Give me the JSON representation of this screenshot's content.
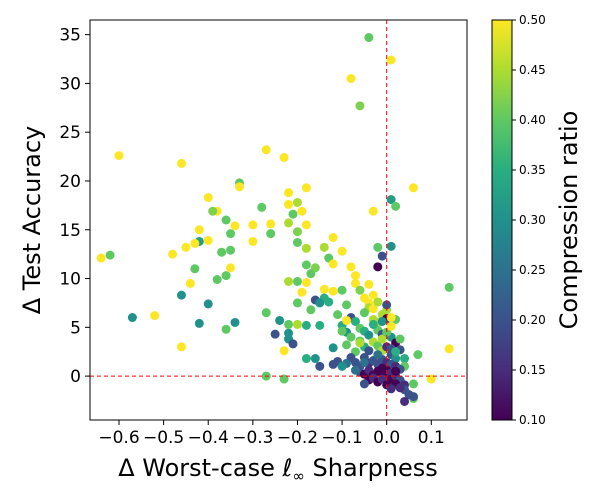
{
  "chart_data": {
    "type": "scatter",
    "title": "",
    "xlabel_pre": "Δ Worst-case ",
    "xlabel_ell": "ℓ",
    "xlabel_sub": "∞",
    "xlabel_post": " Sharpness",
    "ylabel": "Δ Test Accuracy",
    "xlim": [
      -0.665,
      0.18
    ],
    "ylim": [
      -4.5,
      36.5
    ],
    "xticks": [
      -0.6,
      -0.5,
      -0.4,
      -0.3,
      -0.2,
      -0.1,
      0.0,
      0.1
    ],
    "xtick_labels": [
      "−0.6",
      "−0.5",
      "−0.4",
      "−0.3",
      "−0.2",
      "−0.1",
      "0.0",
      "0.1"
    ],
    "yticks": [
      0,
      5,
      10,
      15,
      20,
      25,
      30,
      35
    ],
    "ytick_labels": [
      "0",
      "5",
      "10",
      "15",
      "20",
      "25",
      "30",
      "35"
    ],
    "reference_lines": {
      "x": 0,
      "y": 0,
      "color": "#ff0000",
      "style": "dashed"
    },
    "colorbar": {
      "label": "Compression ratio",
      "range": [
        0.1,
        0.5
      ],
      "ticks": [
        0.1,
        0.15,
        0.2,
        0.25,
        0.3,
        0.35,
        0.4,
        0.45,
        0.5
      ],
      "tick_labels": [
        "0.10",
        "0.15",
        "0.20",
        "0.25",
        "0.30",
        "0.35",
        "0.40",
        "0.45",
        "0.50"
      ],
      "colormap": "viridis"
    },
    "points": [
      [
        -0.04,
        34.7,
        0.4
      ],
      [
        0.01,
        32.4,
        0.5
      ],
      [
        -0.08,
        30.5,
        0.5
      ],
      [
        -0.06,
        27.7,
        0.42
      ],
      [
        -0.6,
        22.6,
        0.5
      ],
      [
        -0.46,
        21.8,
        0.5
      ],
      [
        -0.27,
        23.2,
        0.5
      ],
      [
        -0.23,
        22.4,
        0.5
      ],
      [
        -0.33,
        19.8,
        0.4
      ],
      [
        -0.33,
        19.4,
        0.5
      ],
      [
        -0.18,
        19.3,
        0.5
      ],
      [
        -0.22,
        18.8,
        0.5
      ],
      [
        -0.4,
        18.3,
        0.5
      ],
      [
        -0.22,
        17.6,
        0.5
      ],
      [
        -0.2,
        17.8,
        0.45
      ],
      [
        0.01,
        18.1,
        0.32
      ],
      [
        0.02,
        17.4,
        0.4
      ],
      [
        -0.03,
        16.9,
        0.5
      ],
      [
        0.06,
        19.3,
        0.5
      ],
      [
        -0.38,
        16.9,
        0.5
      ],
      [
        -0.39,
        16.9,
        0.42
      ],
      [
        -0.21,
        16.6,
        0.4
      ],
      [
        -0.19,
        16.9,
        0.5
      ],
      [
        -0.28,
        17.3,
        0.4
      ],
      [
        -0.36,
        16.0,
        0.4
      ],
      [
        -0.3,
        15.5,
        0.5
      ],
      [
        -0.26,
        15.6,
        0.5
      ],
      [
        -0.22,
        15.7,
        0.45
      ],
      [
        -0.18,
        15.5,
        0.5
      ],
      [
        -0.34,
        15.4,
        0.5
      ],
      [
        -0.42,
        15.0,
        0.5
      ],
      [
        -0.2,
        14.8,
        0.42
      ],
      [
        -0.26,
        14.6,
        0.4
      ],
      [
        -0.35,
        14.6,
        0.4
      ],
      [
        -0.3,
        13.8,
        0.5
      ],
      [
        -0.2,
        13.7,
        0.4
      ],
      [
        -0.12,
        14.2,
        0.5
      ],
      [
        -0.42,
        13.8,
        0.32
      ],
      [
        -0.4,
        13.9,
        0.5
      ],
      [
        -0.45,
        13.2,
        0.5
      ],
      [
        -0.43,
        13.6,
        0.5
      ],
      [
        -0.18,
        13.1,
        0.45
      ],
      [
        -0.14,
        13.2,
        0.45
      ],
      [
        -0.35,
        12.9,
        0.4
      ],
      [
        -0.37,
        12.7,
        0.4
      ],
      [
        -0.48,
        12.5,
        0.5
      ],
      [
        -0.64,
        12.1,
        0.5
      ],
      [
        -0.62,
        12.4,
        0.4
      ],
      [
        -0.1,
        12.8,
        0.5
      ],
      [
        -0.13,
        12.1,
        0.4
      ],
      [
        -0.18,
        11.4,
        0.4
      ],
      [
        -0.16,
        11.1,
        0.42
      ],
      [
        -0.12,
        11.5,
        0.5
      ],
      [
        -0.35,
        11.1,
        0.5
      ],
      [
        -0.08,
        11.2,
        0.5
      ],
      [
        -0.02,
        11.2,
        0.1
      ],
      [
        -0.2,
        9.7,
        0.4
      ],
      [
        -0.22,
        9.7,
        0.45
      ],
      [
        -0.17,
        10.5,
        0.4
      ],
      [
        0.01,
        13.3,
        0.3
      ],
      [
        -0.02,
        13.2,
        0.4
      ],
      [
        -0.01,
        12.3,
        0.2
      ],
      [
        -0.43,
        11.0,
        0.4
      ],
      [
        -0.36,
        10.3,
        0.4
      ],
      [
        -0.38,
        9.9,
        0.4
      ],
      [
        -0.44,
        9.5,
        0.5
      ],
      [
        -0.18,
        9.6,
        0.5
      ],
      [
        -0.14,
        8.9,
        0.5
      ],
      [
        -0.12,
        8.7,
        0.5
      ],
      [
        -0.1,
        8.8,
        0.4
      ],
      [
        -0.19,
        8.6,
        0.5
      ],
      [
        -0.14,
        8.0,
        0.35
      ],
      [
        -0.07,
        10.3,
        0.5
      ],
      [
        -0.07,
        9.5,
        0.5
      ],
      [
        -0.06,
        8.8,
        0.42
      ],
      [
        -0.05,
        8.0,
        0.5
      ],
      [
        -0.04,
        7.5,
        0.5
      ],
      [
        -0.03,
        8.3,
        0.5
      ],
      [
        -0.04,
        7.0,
        0.45
      ],
      [
        -0.05,
        6.5,
        0.4
      ],
      [
        -0.09,
        7.3,
        0.4
      ],
      [
        -0.2,
        7.5,
        0.4
      ],
      [
        -0.16,
        7.8,
        0.2
      ],
      [
        -0.15,
        7.5,
        0.3
      ],
      [
        -0.13,
        7.6,
        0.35
      ],
      [
        -0.17,
        6.8,
        0.4
      ],
      [
        -0.46,
        8.3,
        0.3
      ],
      [
        -0.4,
        7.4,
        0.3
      ],
      [
        -0.57,
        6.0,
        0.3
      ],
      [
        -0.27,
        6.5,
        0.4
      ],
      [
        -0.24,
        5.7,
        0.3
      ],
      [
        -0.36,
        4.8,
        0.4
      ],
      [
        -0.34,
        5.5,
        0.3
      ],
      [
        -0.42,
        5.4,
        0.3
      ],
      [
        -0.52,
        6.2,
        0.5
      ],
      [
        -0.25,
        4.3,
        0.2
      ],
      [
        -0.22,
        4.4,
        0.3
      ],
      [
        -0.22,
        5.3,
        0.4
      ],
      [
        -0.2,
        5.3,
        0.45
      ],
      [
        -0.18,
        5.2,
        0.35
      ],
      [
        -0.15,
        5.2,
        0.35
      ],
      [
        -0.22,
        3.8,
        0.3
      ],
      [
        -0.21,
        3.3,
        0.2
      ],
      [
        -0.23,
        2.6,
        0.5
      ],
      [
        -0.46,
        3.0,
        0.5
      ],
      [
        -0.27,
        0.0,
        0.4
      ],
      [
        -0.23,
        -0.3,
        0.4
      ],
      [
        -0.18,
        1.8,
        0.35
      ],
      [
        -0.16,
        1.8,
        0.3
      ],
      [
        -0.15,
        1.0,
        0.2
      ],
      [
        -0.12,
        2.9,
        0.3
      ],
      [
        -0.11,
        1.5,
        0.2
      ],
      [
        -0.1,
        5.2,
        0.35
      ],
      [
        -0.09,
        4.5,
        0.3
      ],
      [
        -0.08,
        6.0,
        0.2
      ],
      [
        -0.07,
        5.6,
        0.35
      ],
      [
        -0.06,
        4.9,
        0.4
      ],
      [
        -0.05,
        4.6,
        0.35
      ],
      [
        -0.04,
        4.2,
        0.3
      ],
      [
        -0.03,
        5.8,
        0.45
      ],
      [
        -0.02,
        5.5,
        0.45
      ],
      [
        -0.01,
        6.3,
        0.45
      ],
      [
        0.0,
        6.8,
        0.45
      ],
      [
        0.0,
        7.3,
        0.2
      ],
      [
        0.0,
        5.9,
        0.1
      ],
      [
        0.01,
        5.6,
        0.2
      ],
      [
        0.02,
        5.8,
        0.4
      ],
      [
        -0.02,
        4.7,
        0.4
      ],
      [
        -0.01,
        4.3,
        0.2
      ],
      [
        0.01,
        4.0,
        0.3
      ],
      [
        0.02,
        3.4,
        0.1
      ],
      [
        0.03,
        2.7,
        0.2
      ],
      [
        -0.09,
        3.2,
        0.4
      ],
      [
        -0.07,
        2.5,
        0.4
      ],
      [
        -0.06,
        3.6,
        0.4
      ],
      [
        -0.05,
        3.0,
        0.35
      ],
      [
        -0.04,
        2.6,
        0.2
      ],
      [
        -0.03,
        3.5,
        0.45
      ],
      [
        -0.02,
        3.1,
        0.4
      ],
      [
        -0.01,
        2.6,
        0.45
      ],
      [
        0.01,
        2.2,
        0.2
      ],
      [
        0.02,
        1.8,
        0.3
      ],
      [
        0.04,
        1.8,
        0.35
      ],
      [
        0.04,
        1.0,
        0.4
      ],
      [
        0.07,
        2.2,
        0.4
      ],
      [
        0.06,
        -0.8,
        0.4
      ],
      [
        0.06,
        -2.3,
        0.4
      ],
      [
        0.1,
        -0.3,
        0.5
      ],
      [
        0.14,
        2.8,
        0.5
      ],
      [
        0.14,
        9.1,
        0.4
      ],
      [
        -0.08,
        1.9,
        0.2
      ],
      [
        -0.07,
        1.4,
        0.2
      ],
      [
        -0.06,
        1.0,
        0.2
      ],
      [
        -0.05,
        1.9,
        0.2
      ],
      [
        -0.04,
        1.3,
        0.15
      ],
      [
        -0.03,
        1.6,
        0.2
      ],
      [
        -0.02,
        1.2,
        0.2
      ],
      [
        -0.01,
        1.7,
        0.2
      ],
      [
        0.0,
        1.4,
        0.15
      ],
      [
        0.01,
        1.2,
        0.2
      ],
      [
        0.02,
        1.0,
        0.15
      ],
      [
        0.03,
        0.7,
        0.2
      ],
      [
        -0.06,
        0.4,
        0.2
      ],
      [
        -0.05,
        0.2,
        0.1
      ],
      [
        -0.04,
        0.6,
        0.15
      ],
      [
        -0.03,
        0.1,
        0.1
      ],
      [
        -0.02,
        0.5,
        0.1
      ],
      [
        -0.01,
        0.2,
        0.1
      ],
      [
        0.0,
        0.6,
        0.1
      ],
      [
        0.0,
        0.0,
        0.1
      ],
      [
        0.01,
        0.3,
        0.15
      ],
      [
        0.01,
        -0.3,
        0.1
      ],
      [
        0.02,
        0.0,
        0.15
      ],
      [
        0.03,
        -0.4,
        0.2
      ],
      [
        0.04,
        -0.9,
        0.15
      ],
      [
        0.04,
        -1.4,
        0.2
      ],
      [
        0.05,
        -1.9,
        0.2
      ],
      [
        0.04,
        -2.6,
        0.15
      ],
      [
        0.06,
        -2.1,
        0.2
      ],
      [
        -0.04,
        -0.4,
        0.1
      ],
      [
        -0.03,
        -0.2,
        0.15
      ],
      [
        -0.02,
        -0.6,
        0.1
      ],
      [
        -0.01,
        -0.3,
        0.15
      ],
      [
        0.02,
        -0.8,
        0.1
      ],
      [
        0.03,
        -1.2,
        0.15
      ],
      [
        -0.05,
        -0.8,
        0.2
      ],
      [
        0.0,
        -0.9,
        0.1
      ],
      [
        0.01,
        -1.3,
        0.15
      ],
      [
        0.02,
        0.5,
        0.1
      ],
      [
        -0.01,
        0.8,
        0.1
      ],
      [
        0.0,
        3.0,
        0.15
      ],
      [
        0.01,
        2.8,
        0.2
      ],
      [
        -0.01,
        3.8,
        0.45
      ],
      [
        0.0,
        4.5,
        0.4
      ],
      [
        0.01,
        6.0,
        0.5
      ],
      [
        -0.11,
        6.3,
        0.4
      ],
      [
        -0.1,
        4.6,
        0.4
      ],
      [
        -0.08,
        4.0,
        0.4
      ],
      [
        -0.09,
        5.7,
        0.5
      ],
      [
        -0.03,
        6.9,
        0.5
      ],
      [
        -0.02,
        7.6,
        0.45
      ],
      [
        -0.04,
        9.4,
        0.5
      ],
      [
        -0.03,
        5.3,
        0.35
      ],
      [
        -0.06,
        3.4,
        0.45
      ],
      [
        -0.05,
        1.4,
        0.25
      ],
      [
        -0.07,
        0.6,
        0.25
      ],
      [
        -0.09,
        1.3,
        0.25
      ],
      [
        -0.1,
        1.0,
        0.3
      ],
      [
        -0.12,
        1.2,
        0.2
      ],
      [
        -0.02,
        2.2,
        0.25
      ],
      [
        0.02,
        2.5,
        0.35
      ],
      [
        0.03,
        3.8,
        0.4
      ],
      [
        0.01,
        5.1,
        0.5
      ],
      [
        -0.01,
        5.6,
        0.3
      ]
    ]
  }
}
